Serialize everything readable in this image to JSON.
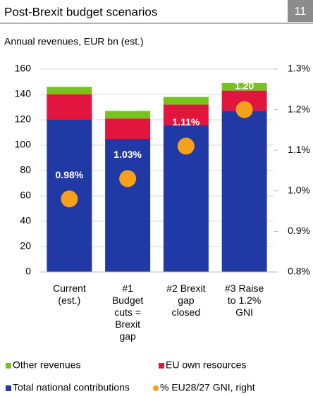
{
  "page_number": "11",
  "chart_data": {
    "type": "stacked-bar",
    "title": "Post-Brexit budget scenarios",
    "subtitle": "Annual revenues, EUR bn (est.)",
    "categories": [
      "Current (est.)",
      "#1 Budget cuts = Brexit gap",
      "#2 Brexit gap closed",
      "#3 Raise to 1.2% GNI"
    ],
    "series": [
      {
        "name": "Total national contributions",
        "color": "#2139a4",
        "values": [
          120,
          105,
          116,
          127
        ]
      },
      {
        "name": "EU own resources",
        "color": "#e2153f",
        "values": [
          20,
          16,
          16,
          16
        ]
      },
      {
        "name": "Other revenues",
        "color": "#78c21e",
        "values": [
          6,
          6,
          6,
          6
        ]
      },
      {
        "name": "% EU28/27 GNI, right",
        "color": "#f7a11a",
        "axis": "y2",
        "type": "scatter",
        "values": [
          0.98,
          1.03,
          1.11,
          1.2
        ],
        "value_labels": [
          "0.98%",
          "1.03%",
          "1.11%",
          "1.20"
        ]
      }
    ],
    "ylim": [
      0,
      160
    ],
    "yticks": [
      0,
      20,
      40,
      60,
      80,
      100,
      120,
      140,
      160
    ],
    "y2lim": [
      0.8,
      1.3
    ],
    "y2ticks": [
      {
        "value": 0.8,
        "label": "0.8%"
      },
      {
        "value": 0.9,
        "label": "0.9%"
      },
      {
        "value": 1.0,
        "label": "1.0%"
      },
      {
        "value": 1.1,
        "label": "1.1%"
      },
      {
        "value": 1.2,
        "label": "1.2%"
      },
      {
        "value": 1.3,
        "label": "1.3%"
      }
    ],
    "grid": true
  }
}
